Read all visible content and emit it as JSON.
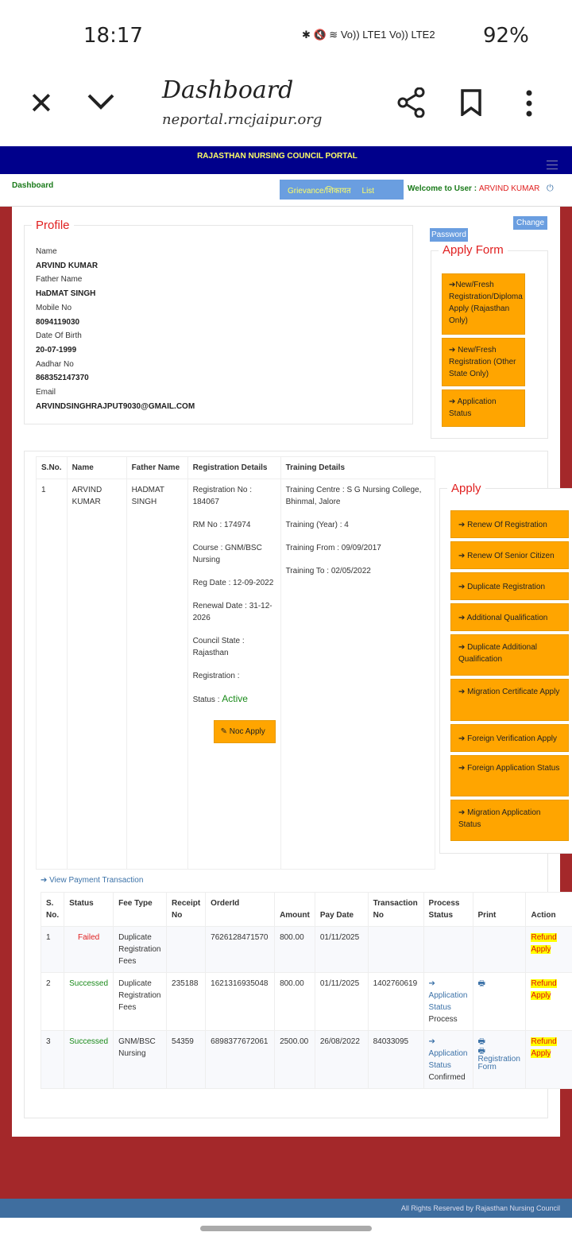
{
  "status_bar": {
    "time": "18:17",
    "network": "Vo)) LTE1 Vo)) LTE2",
    "battery": "92%"
  },
  "browser": {
    "title": "Dashboard",
    "url": "neportal.rncjaipur.org"
  },
  "header": {
    "title": "RAJASTHAN NURSING COUNCIL PORTAL"
  },
  "nav": {
    "dashboard": "Dashboard",
    "grievance": "Grievance/शिकायत",
    "list": "List",
    "welcome": "Welcome to User : ",
    "user": "ARVIND KUMAR"
  },
  "profile": {
    "title": "Profile",
    "fields": [
      {
        "label": "Name",
        "value": "ARVIND KUMAR"
      },
      {
        "label": "Father Name",
        "value": "HaDMAT SINGH"
      },
      {
        "label": "Mobile No",
        "value": "8094119030"
      },
      {
        "label": "Date Of Birth",
        "value": "20-07-1999"
      },
      {
        "label": "Aadhar No",
        "value": "868352147370"
      },
      {
        "label": "Email",
        "value": "ARVINDSINGHRAJPUT9030@GMAIL.COM"
      }
    ]
  },
  "change_password": {
    "part1": "Change",
    "part2": "Password"
  },
  "apply_form": {
    "title": "Apply Form",
    "buttons": [
      "New/Fresh Registration/Diploma Apply (Rajasthan Only)",
      "New/Fresh Registration (Other State Only)",
      "Application Status"
    ]
  },
  "reg_table": {
    "headers": [
      "S.No.",
      "Name",
      "Father Name",
      "Registration Details",
      "Training Details"
    ],
    "row": {
      "sno": "1",
      "name": "ARVIND KUMAR",
      "father": "HADMAT SINGH",
      "details": [
        "Registration No : 184067",
        "RM No : 174974",
        "Course : GNM/BSC Nursing",
        "Reg Date : 12-09-2022",
        "Renewal Date : 31-12-2026",
        "Council State : Rajasthan",
        "Registration :"
      ],
      "status_label": "Status : ",
      "status": "Active",
      "noc": "Noc Apply",
      "training": [
        "Training Centre : S G Nursing College, Bhinmal, Jalore",
        "Training (Year) : 4",
        "Training From : 09/09/2017",
        "Training To : 02/05/2022"
      ]
    }
  },
  "apply": {
    "title": "Apply",
    "buttons": [
      "Renew Of Registration",
      "Renew Of Senior Citizen",
      "Duplicate Registration",
      "Additional Qualification",
      "Duplicate Additional Qualification",
      "Migration Certificate Apply",
      "Foreign Verification Apply",
      "Foreign Application Status",
      "Migration Application Status"
    ]
  },
  "payments": {
    "link": "View Payment Transaction",
    "headers": [
      "S. No.",
      "Status",
      "Fee Type",
      "Receipt No",
      "OrderId",
      "Amount",
      "Pay Date",
      "Transaction No",
      "Process Status",
      "Print",
      "Action"
    ],
    "rows": [
      {
        "sno": "1",
        "status": "Failed",
        "fee": "Duplicate Registration Fees",
        "receipt": "",
        "order": "7626128471570",
        "amount": "800.00",
        "date": "01/11/2025",
        "txn": "",
        "proc_link": "",
        "proc": "",
        "print_form": "",
        "action": "Refund Apply"
      },
      {
        "sno": "2",
        "status": "Successed",
        "fee": "Duplicate Registration Fees",
        "receipt": "235188",
        "order": "1621316935048",
        "amount": "800.00",
        "date": "01/11/2025",
        "txn": "1402760619",
        "proc_link": "Application Status",
        "proc": "Process",
        "print_form": "",
        "action": "Refund Apply"
      },
      {
        "sno": "3",
        "status": "Successed",
        "fee": "GNM/BSC Nursing",
        "receipt": "54359",
        "order": "6898377672061",
        "amount": "2500.00",
        "date": "26/08/2022",
        "txn": "84033095",
        "proc_link": "Application Status",
        "proc": "Confirmed",
        "print_form": "Registration Form",
        "action": "Refund Apply"
      }
    ]
  },
  "footer": {
    "text": "All Rights Reserved by Rajasthan Nursing Council"
  },
  "colors": {
    "navy": "#00008b",
    "accent_orange": "#ffa500",
    "background": "#a4282a",
    "footer": "#3f6e9f",
    "success": "#1a8a1a",
    "failed": "#e02020"
  }
}
